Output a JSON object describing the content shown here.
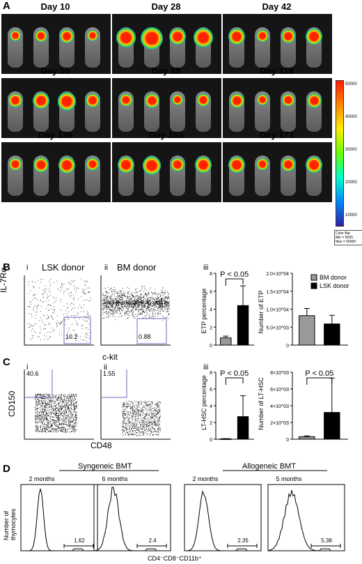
{
  "panel_a": {
    "letter": "A",
    "days": [
      "Day 10",
      "Day 28",
      "Day 42",
      "Day 55",
      "Day 88",
      "Day 118",
      "Day 136",
      "Day 153",
      "Day 173"
    ],
    "colorbar": {
      "ticks": [
        "50000",
        "40000",
        "30000",
        "20000",
        "10000"
      ],
      "box_title": "Color Bar",
      "box_min": "Min = 5000",
      "box_max": "Max = 50000"
    }
  },
  "panel_b": {
    "letter": "B",
    "sub_i": "i",
    "sub_ii": "ii",
    "sub_iii": "iii",
    "title_lsk": "LSK donor",
    "title_bm": "BM donor",
    "y_axis": "IL-7Rα",
    "x_axis": "c-kit",
    "gate_lsk": "10.2",
    "gate_bm": "0.88",
    "bar_chart": {
      "type": "bar",
      "ylabel": "ETP percentage",
      "pvalue": "P < 0.05",
      "ticks": [
        "0",
        "2",
        "4",
        "6",
        "8"
      ],
      "values": [
        0.8,
        4.4
      ],
      "errors": [
        0.2,
        2.2
      ],
      "ylim": [
        0,
        8
      ]
    },
    "number_chart": {
      "type": "bar",
      "ylabel": "Number of ETP",
      "ticks": [
        "0",
        "5.0×10^03",
        "1.0×10^04",
        "1.5×10^04",
        "2.0×10^04"
      ],
      "values": [
        8200,
        5900
      ],
      "errors": [
        2000,
        2400
      ],
      "ylim": [
        0,
        20000
      ],
      "legend": [
        "BM donor",
        "LSK donor"
      ]
    }
  },
  "panel_c": {
    "letter": "C",
    "sub_i": "i",
    "sub_ii": "ii",
    "sub_iii": "iii",
    "y_axis": "CD150",
    "x_axis": "CD48",
    "gate_i": "40.6",
    "gate_ii": "1.55",
    "bar_chart": {
      "type": "bar",
      "ylabel": "LT-HSC percentage",
      "pvalue": "P < 0.05",
      "ticks": [
        "0",
        "2",
        "4",
        "6",
        "8"
      ],
      "values": [
        0.05,
        2.7
      ],
      "errors": [
        0.02,
        2.5
      ],
      "ylim": [
        0,
        8
      ]
    },
    "number_chart": {
      "type": "bar",
      "ylabel": "Number of LT-HSC",
      "pvalue": "P < 0.05",
      "ticks": [
        "0",
        "2×10^03",
        "4×10^03",
        "6×10^03",
        "8×10^03"
      ],
      "values": [
        300,
        3200
      ],
      "errors": [
        100,
        4100
      ],
      "ylim": [
        0,
        8000
      ]
    }
  },
  "panel_d": {
    "letter": "D",
    "group_syn": "Syngeneic BMT",
    "group_allo": "Allogeneic BMT",
    "y_axis": "Number of thymocytes",
    "x_axis": "CD4⁻CD8⁻CD11b⁺",
    "histograms": [
      {
        "label": "2 months",
        "gate": "1.62"
      },
      {
        "label": "6 months",
        "gate": "2.4"
      },
      {
        "label": "2 months",
        "gate": "2.35"
      },
      {
        "label": "5 months",
        "gate": "5.38"
      }
    ]
  },
  "chart_data": [
    {
      "type": "bar",
      "categories": [
        "BM donor",
        "LSK donor"
      ],
      "values": [
        0.8,
        4.4
      ],
      "ylabel": "ETP percentage",
      "ylim": [
        0,
        8
      ]
    },
    {
      "type": "bar",
      "categories": [
        "BM donor",
        "LSK donor"
      ],
      "values": [
        8200,
        5900
      ],
      "ylabel": "Number of ETP",
      "ylim": [
        0,
        20000
      ]
    },
    {
      "type": "bar",
      "categories": [
        "BM donor",
        "LSK donor"
      ],
      "values": [
        0.05,
        2.7
      ],
      "ylabel": "LT-HSC percentage",
      "ylim": [
        0,
        8
      ]
    },
    {
      "type": "bar",
      "categories": [
        "BM donor",
        "LSK donor"
      ],
      "values": [
        300,
        3200
      ],
      "ylabel": "Number of LT-HSC",
      "ylim": [
        0,
        8000
      ]
    }
  ]
}
